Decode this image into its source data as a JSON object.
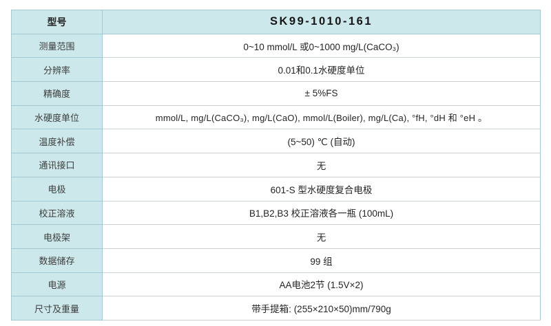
{
  "table": {
    "header": {
      "label": "型号",
      "model": "SK99-1010-161"
    },
    "rows": [
      {
        "label": "测量范围",
        "value": "0~10 mmol/L 或0~1000 mg/L(CaCO₃)"
      },
      {
        "label": "分辨率",
        "value": "0.01和0.1水硬度单位"
      },
      {
        "label": "精确度",
        "value": "± 5%FS"
      },
      {
        "label": "水硬度单位",
        "value": "mmol/L, mg/L(CaCO₃), mg/L(CaO), mmol/L(Boiler), mg/L(Ca), °fH, °dH 和 °eH 。"
      },
      {
        "label": "温度补偿",
        "value": "(5~50) ℃ (自动)"
      },
      {
        "label": "通讯接口",
        "value": "无"
      },
      {
        "label": "电极",
        "value": "601-S 型水硬度复合电极"
      },
      {
        "label": "校正溶液",
        "value": "B1,B2,B3 校正溶液各一瓶 (100mL)"
      },
      {
        "label": "电极架",
        "value": "无"
      },
      {
        "label": "数据储存",
        "value": "99 组"
      },
      {
        "label": "电源",
        "value": "AA电池2节 (1.5V×2)"
      },
      {
        "label": "尺寸及重量",
        "value": "带手提箱: (255×210×50)mm/790g"
      }
    ],
    "colors": {
      "cell_teal": "#cde8ea",
      "border_teal": "#a3c8d2",
      "border_light": "#c6d0d9"
    }
  }
}
